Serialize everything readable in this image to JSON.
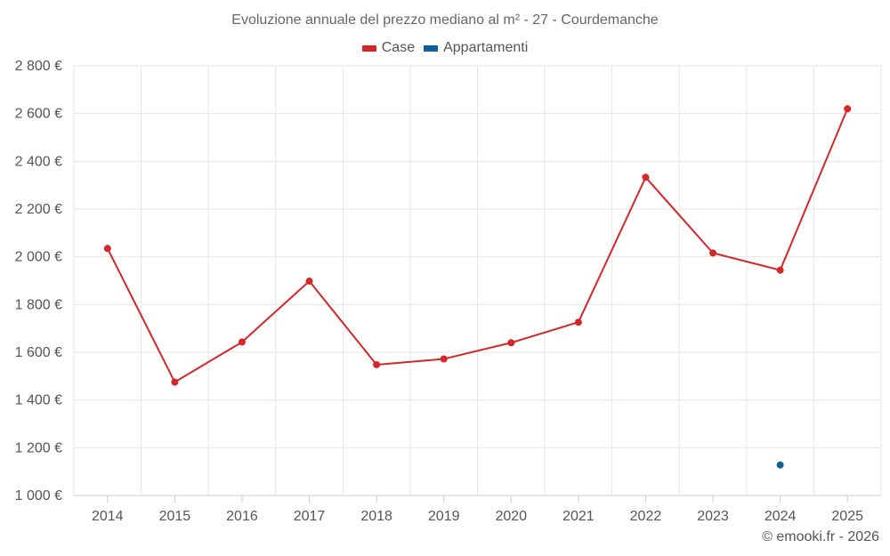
{
  "chart_data": {
    "type": "line",
    "title": "Evoluzione annuale del prezzo mediano al m² - 27 - Courdemanche",
    "categories": [
      "2014",
      "2015",
      "2016",
      "2017",
      "2018",
      "2019",
      "2020",
      "2021",
      "2022",
      "2023",
      "2024",
      "2025"
    ],
    "ylim": [
      1000,
      2800
    ],
    "yticks": [
      1000,
      1200,
      1400,
      1600,
      1800,
      2000,
      2200,
      2400,
      2600,
      2800
    ],
    "ytick_labels": [
      "1 000 €",
      "1 200 €",
      "1 400 €",
      "1 600 €",
      "1 800 €",
      "2 000 €",
      "2 200 €",
      "2 400 €",
      "2 600 €",
      "2 800 €"
    ],
    "grid": true,
    "legend_position": "top-center",
    "series": [
      {
        "name": "Case",
        "color": "#d62728",
        "values": [
          2035,
          1475,
          1643,
          1898,
          1548,
          1572,
          1640,
          1726,
          2333,
          2016,
          1944,
          2620
        ]
      },
      {
        "name": "Appartamenti",
        "color": "#0e5f99",
        "values": [
          null,
          null,
          null,
          null,
          null,
          null,
          null,
          null,
          null,
          null,
          1128,
          null
        ]
      }
    ]
  },
  "legend": {
    "case_label": "Case",
    "appartamenti_label": "Appartamenti"
  },
  "credit": "© emooki.fr - 2026",
  "colors": {
    "grid": "#e6e6e6",
    "axis": "#cccccc",
    "text": "#555555"
  }
}
